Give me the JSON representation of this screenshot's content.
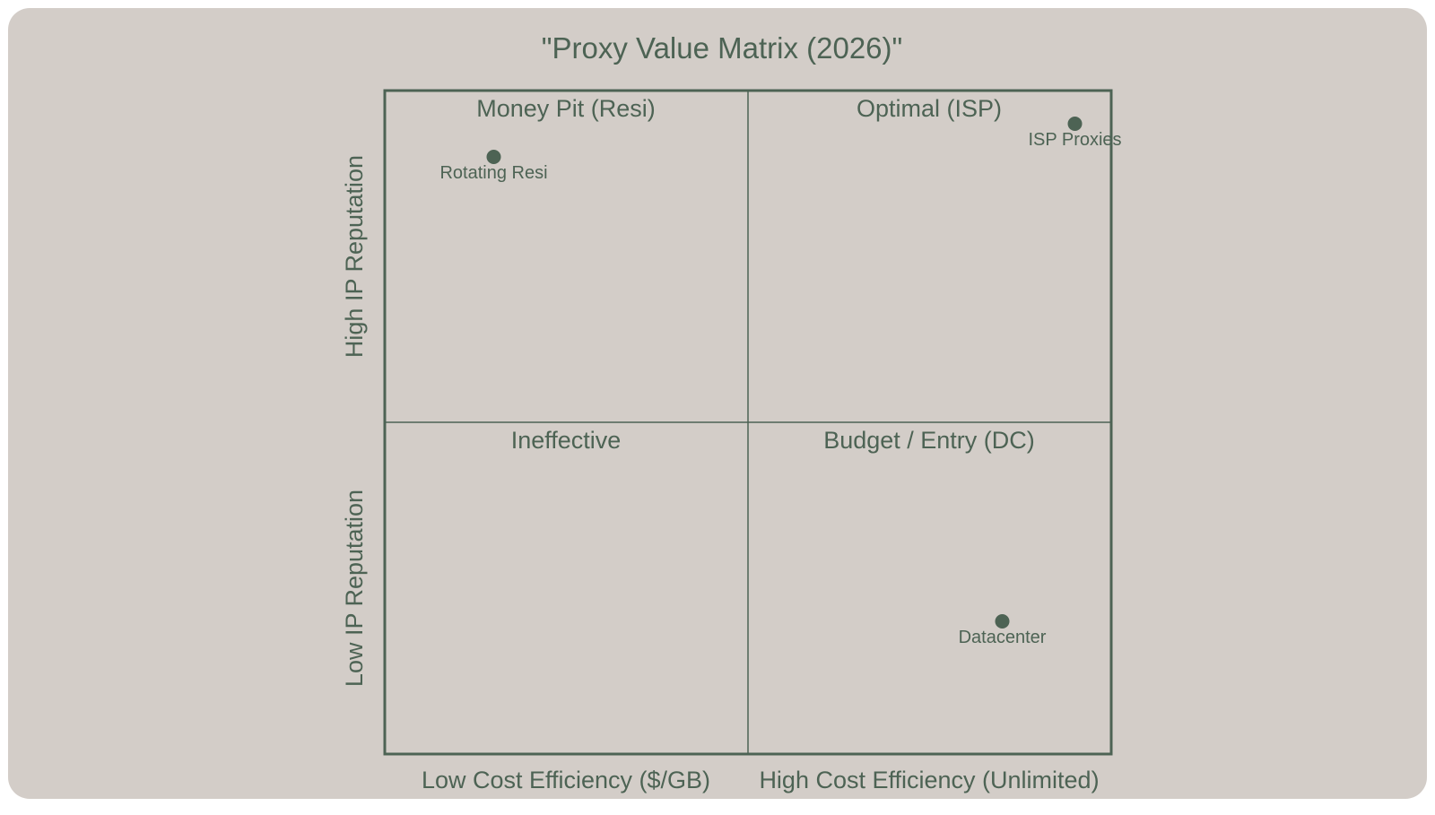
{
  "colors": {
    "background": "#d3cdc8",
    "accent": "#4d6354"
  },
  "chart_data": {
    "type": "quadrant",
    "title": "\"Proxy Value Matrix (2026)\"",
    "x_axis": {
      "low_label": "Low Cost Efficiency ($/GB)",
      "high_label": "High Cost Efficiency (Unlimited)",
      "range": [
        0,
        1
      ]
    },
    "y_axis": {
      "low_label": "Low IP Reputation",
      "high_label": "High IP Reputation",
      "range": [
        0,
        1
      ]
    },
    "quadrants": {
      "top_left": "Money Pit (Resi)",
      "top_right": "Optimal (ISP)",
      "bottom_left": "Ineffective",
      "bottom_right": "Budget / Entry (DC)"
    },
    "points": [
      {
        "label": "Rotating Resi",
        "x": 0.15,
        "y": 0.9
      },
      {
        "label": "ISP Proxies",
        "x": 0.95,
        "y": 0.95
      },
      {
        "label": "Datacenter",
        "x": 0.85,
        "y": 0.2
      }
    ],
    "grid": false
  }
}
